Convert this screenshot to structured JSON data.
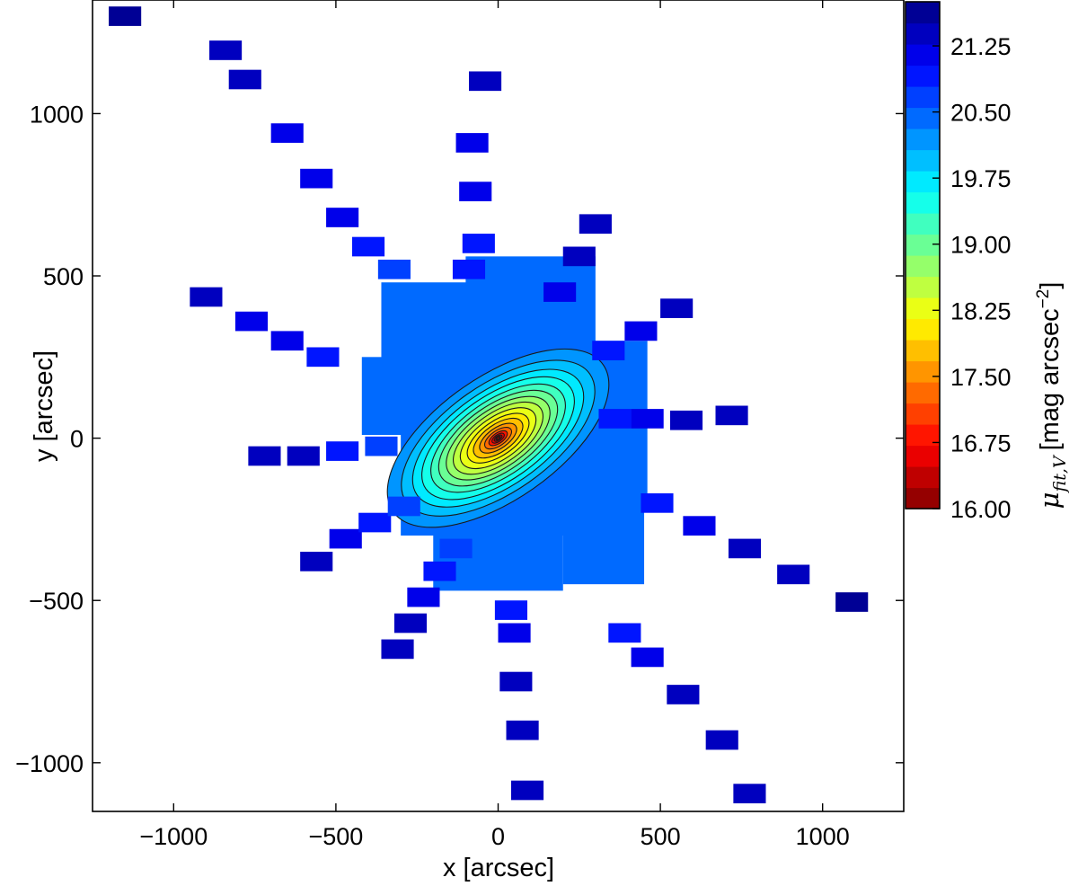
{
  "chart_data": {
    "type": "heatmap",
    "subtype": "filled contour map with colorbar",
    "xlabel": "x [arcsec]",
    "ylabel": "y [arcsec]",
    "xlim": [
      -1250,
      1250
    ],
    "ylim": [
      -1150,
      1350
    ],
    "x_ticks": [
      -1000,
      -500,
      0,
      500,
      1000
    ],
    "x_tick_labels": [
      "−1000",
      "−500",
      "0",
      "500",
      "1000"
    ],
    "y_ticks": [
      -1000,
      -500,
      0,
      500,
      1000
    ],
    "y_tick_labels": [
      "−1000",
      "−500",
      "0",
      "500",
      "1000"
    ],
    "grid": false,
    "colorbar": {
      "label_symbol": "μ",
      "label_subscript": "fit,V",
      "label_units": "[mag arcsec",
      "label_exponent": "−2",
      "label_close": "]",
      "range": [
        16.0,
        21.75
      ],
      "ticks": [
        16.0,
        16.75,
        17.5,
        18.25,
        19.0,
        19.75,
        20.5,
        21.25
      ],
      "tick_labels": [
        "16.00",
        "16.75",
        "17.50",
        "18.25",
        "19.00",
        "19.75",
        "20.50",
        "21.25"
      ],
      "levels": 24,
      "colormap": "jet_reversed"
    },
    "galaxy": {
      "center": [
        0,
        0
      ],
      "central_value": 16.0,
      "position_angle_deg": 35,
      "axis_ratio": 0.48,
      "contour_levels": [
        16.25,
        16.5,
        16.75,
        17.0,
        17.25,
        17.5,
        17.75,
        18.0,
        18.25,
        18.5,
        18.75,
        19.0,
        19.25,
        19.5,
        19.75,
        20.0,
        20.25
      ],
      "contour_semi_major_arcsec": [
        8,
        14,
        22,
        33,
        48,
        66,
        88,
        110,
        135,
        160,
        185,
        212,
        240,
        272,
        305,
        345,
        395
      ]
    },
    "pointings": [
      {
        "x": -1150,
        "y": 1300,
        "mu": 21.55
      },
      {
        "x": -840,
        "y": 1195,
        "mu": 21.4
      },
      {
        "x": -780,
        "y": 1105,
        "mu": 21.35
      },
      {
        "x": -650,
        "y": 940,
        "mu": 21.2
      },
      {
        "x": -560,
        "y": 800,
        "mu": 21.1
      },
      {
        "x": -480,
        "y": 680,
        "mu": 21.05
      },
      {
        "x": -400,
        "y": 590,
        "mu": 20.9
      },
      {
        "x": -320,
        "y": 520,
        "mu": 20.7
      },
      {
        "x": -900,
        "y": 435,
        "mu": 21.3
      },
      {
        "x": -760,
        "y": 360,
        "mu": 21.2
      },
      {
        "x": -650,
        "y": 300,
        "mu": 21.1
      },
      {
        "x": -540,
        "y": 250,
        "mu": 20.9
      },
      {
        "x": -720,
        "y": -55,
        "mu": 21.45
      },
      {
        "x": -600,
        "y": -55,
        "mu": 21.35
      },
      {
        "x": -480,
        "y": -40,
        "mu": 21.0
      },
      {
        "x": -360,
        "y": -25,
        "mu": 20.6
      },
      {
        "x": -560,
        "y": -380,
        "mu": 21.4
      },
      {
        "x": -470,
        "y": -310,
        "mu": 21.25
      },
      {
        "x": -380,
        "y": -260,
        "mu": 21.0
      },
      {
        "x": -290,
        "y": -210,
        "mu": 20.7
      },
      {
        "x": -310,
        "y": -650,
        "mu": 21.4
      },
      {
        "x": -270,
        "y": -570,
        "mu": 21.3
      },
      {
        "x": -230,
        "y": -490,
        "mu": 21.15
      },
      {
        "x": -180,
        "y": -410,
        "mu": 20.95
      },
      {
        "x": -130,
        "y": -340,
        "mu": 20.7
      },
      {
        "x": 90,
        "y": -1085,
        "mu": 21.5
      },
      {
        "x": 75,
        "y": -900,
        "mu": 21.4
      },
      {
        "x": 55,
        "y": -750,
        "mu": 21.35
      },
      {
        "x": 50,
        "y": -600,
        "mu": 21.15
      },
      {
        "x": 40,
        "y": -530,
        "mu": 20.95
      },
      {
        "x": 775,
        "y": -1095,
        "mu": 21.5
      },
      {
        "x": 690,
        "y": -930,
        "mu": 21.4
      },
      {
        "x": 570,
        "y": -790,
        "mu": 21.3
      },
      {
        "x": 460,
        "y": -675,
        "mu": 21.2
      },
      {
        "x": 390,
        "y": -600,
        "mu": 21.0
      },
      {
        "x": 1090,
        "y": -505,
        "mu": 21.55
      },
      {
        "x": 910,
        "y": -420,
        "mu": 21.45
      },
      {
        "x": 760,
        "y": -340,
        "mu": 21.3
      },
      {
        "x": 620,
        "y": -270,
        "mu": 21.15
      },
      {
        "x": 490,
        "y": -200,
        "mu": 20.95
      },
      {
        "x": 720,
        "y": 70,
        "mu": 21.45
      },
      {
        "x": 580,
        "y": 55,
        "mu": 21.3
      },
      {
        "x": 460,
        "y": 60,
        "mu": 21.05
      },
      {
        "x": 360,
        "y": 60,
        "mu": 20.8
      },
      {
        "x": 550,
        "y": 400,
        "mu": 21.4
      },
      {
        "x": 440,
        "y": 330,
        "mu": 21.2
      },
      {
        "x": 340,
        "y": 270,
        "mu": 21.0
      },
      {
        "x": 300,
        "y": 660,
        "mu": 21.45
      },
      {
        "x": 250,
        "y": 560,
        "mu": 21.35
      },
      {
        "x": 190,
        "y": 450,
        "mu": 21.15
      },
      {
        "x": -40,
        "y": 1100,
        "mu": 21.35
      },
      {
        "x": -80,
        "y": 910,
        "mu": 21.25
      },
      {
        "x": -70,
        "y": 760,
        "mu": 21.15
      },
      {
        "x": -60,
        "y": 600,
        "mu": 21.0
      },
      {
        "x": -90,
        "y": 520,
        "mu": 20.85
      }
    ]
  }
}
